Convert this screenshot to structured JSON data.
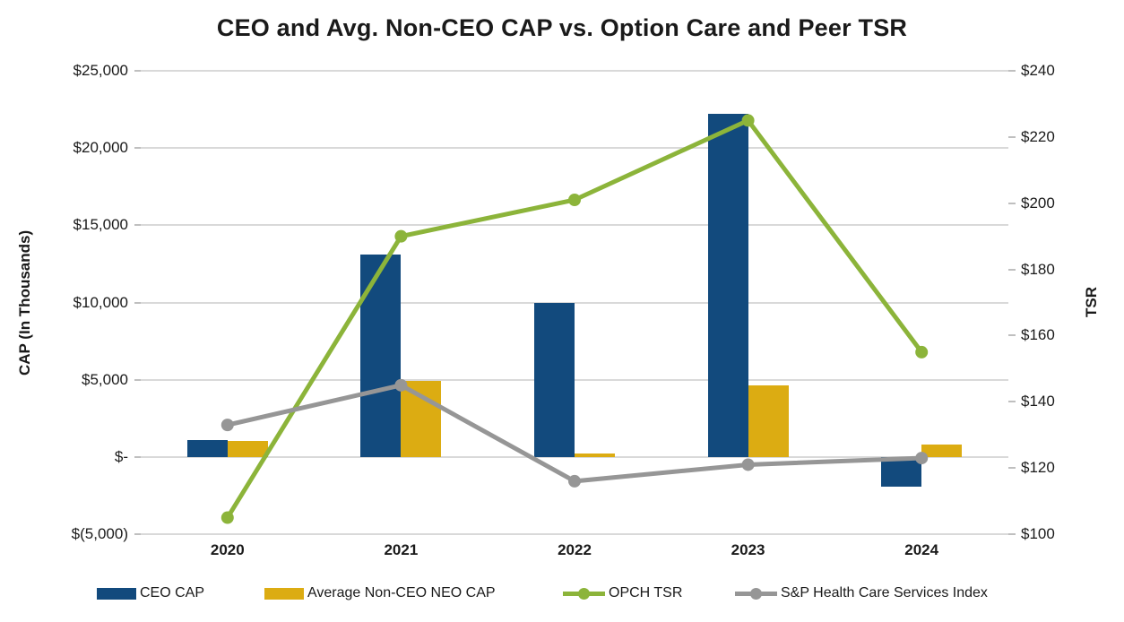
{
  "title": "CEO and Avg. Non-CEO CAP vs. Option Care and Peer TSR",
  "chart_data": {
    "type": "combo-bar-line",
    "title": "CEO and Avg. Non-CEO CAP vs. Option Care and Peer TSR",
    "categories": [
      "2020",
      "2021",
      "2022",
      "2023",
      "2024"
    ],
    "left_axis": {
      "label": "CAP (In Thousands)",
      "min": -5000,
      "max": 25000,
      "tick_step": 5000,
      "tick_labels": [
        "$25,000",
        "$20,000",
        "$15,000",
        "$10,000",
        "$5,000",
        "$-",
        "$(5,000)"
      ],
      "tick_values": [
        25000,
        20000,
        15000,
        10000,
        5000,
        0,
        -5000
      ]
    },
    "right_axis": {
      "label": "TSR",
      "min": 100,
      "max": 240,
      "tick_step": 20,
      "tick_labels": [
        "$240",
        "$220",
        "$200",
        "$180",
        "$160",
        "$140",
        "$120",
        "$100"
      ],
      "tick_values": [
        240,
        220,
        200,
        180,
        160,
        140,
        120,
        100
      ]
    },
    "bar_series": [
      {
        "name": "CEO CAP",
        "color": "#124A7D",
        "axis": "left",
        "values": [
          1100,
          13100,
          10000,
          22200,
          -1900
        ]
      },
      {
        "name": "Average Non-CEO NEO CAP",
        "color": "#DCAC12",
        "axis": "left",
        "values": [
          1050,
          4950,
          250,
          4650,
          800
        ]
      }
    ],
    "line_series": [
      {
        "name": "OPCH TSR",
        "color": "#8CB43A",
        "axis": "right",
        "values": [
          105,
          190,
          201,
          225,
          155
        ]
      },
      {
        "name": "S&P Health Care Services Index",
        "color": "#969696",
        "axis": "right",
        "values": [
          133,
          145,
          116,
          121,
          123
        ]
      }
    ],
    "gridline_color": "#D9D9D9",
    "grid": "horizontal",
    "legend_position": "bottom"
  }
}
